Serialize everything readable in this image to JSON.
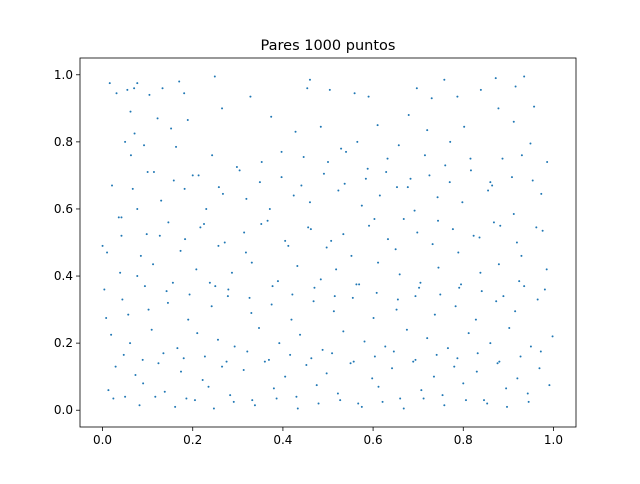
{
  "chart_data": {
    "type": "scatter",
    "title": "Pares 1000 puntos",
    "xlabel": "",
    "ylabel": "",
    "xlim": [
      -0.05,
      1.05
    ],
    "ylim": [
      -0.05,
      1.05
    ],
    "xticks": [
      0.0,
      0.2,
      0.4,
      0.6,
      0.8,
      1.0
    ],
    "yticks": [
      0.0,
      0.2,
      0.4,
      0.6,
      0.8,
      1.0
    ],
    "xtick_labels": [
      "0.0",
      "0.2",
      "0.4",
      "0.6",
      "0.8",
      "1.0"
    ],
    "ytick_labels": [
      "0.0",
      "0.2",
      "0.4",
      "0.6",
      "0.8",
      "1.0"
    ],
    "grid": false,
    "legend": "none",
    "point_color": "#1f77b4",
    "series": [
      {
        "x": [
          0.016,
          0.031,
          0.055,
          0.07,
          0.077,
          0.104,
          0.133,
          0.17,
          0.181,
          0.249,
          0.328,
          0.454,
          0.46,
          0.504,
          0.559,
          0.59,
          0.697,
          0.73,
          0.758,
          0.787,
          0.839,
          0.872,
          0.916,
          0.935,
          0.957,
          0.062,
          0.071,
          0.092,
          0.122,
          0.152,
          0.163,
          0.189,
          0.265,
          0.374,
          0.428,
          0.484,
          0.529,
          0.565,
          0.61,
          0.657,
          0.679,
          0.72,
          0.771,
          0.802,
          0.878,
          0.912,
          0.949,
          0.05,
          0.063,
          0.1,
          0.2,
          0.243,
          0.298,
          0.353,
          0.397,
          0.446,
          0.5,
          0.54,
          0.588,
          0.632,
          0.683,
          0.715,
          0.76,
          0.816,
          0.86,
          0.887,
          0.93,
          0.986,
          0.021,
          0.042,
          0.077,
          0.13,
          0.182,
          0.23,
          0.267,
          0.319,
          0.371,
          0.424,
          0.46,
          0.523,
          0.575,
          0.615,
          0.653,
          0.692,
          0.743,
          0.798,
          0.855,
          0.912,
          0.973,
          0.0,
          0.01,
          0.042,
          0.098,
          0.146,
          0.183,
          0.217,
          0.257,
          0.314,
          0.352,
          0.405,
          0.456,
          0.497,
          0.534,
          0.591,
          0.633,
          0.668,
          0.732,
          0.777,
          0.823,
          0.868,
          0.919,
          0.962,
          0.004,
          0.039,
          0.077,
          0.112,
          0.156,
          0.208,
          0.25,
          0.287,
          0.331,
          0.389,
          0.432,
          0.484,
          0.518,
          0.569,
          0.611,
          0.659,
          0.705,
          0.745,
          0.791,
          0.838,
          0.879,
          0.924,
          0.985,
          0.008,
          0.057,
          0.102,
          0.145,
          0.19,
          0.242,
          0.278,
          0.33,
          0.375,
          0.419,
          0.468,
          0.513,
          0.555,
          0.601,
          0.652,
          0.694,
          0.737,
          0.783,
          0.828,
          0.873,
          0.915,
          0.965,
          0.019,
          0.061,
          0.109,
          0.166,
          0.21,
          0.256,
          0.293,
          0.347,
          0.392,
          0.438,
          0.488,
          0.534,
          0.581,
          0.627,
          0.675,
          0.72,
          0.766,
          0.812,
          0.86,
          0.902,
          0.95,
          0.998,
          0.029,
          0.073,
          0.124,
          0.174,
          0.222,
          0.265,
          0.313,
          0.36,
          0.405,
          0.452,
          0.497,
          0.55,
          0.598,
          0.642,
          0.689,
          0.735,
          0.78,
          0.83,
          0.876,
          0.92,
          0.969,
          0.013,
          0.05,
          0.09,
          0.138,
          0.186,
          0.235,
          0.283,
          0.332,
          0.38,
          0.43,
          0.475,
          0.522,
          0.567,
          0.612,
          0.66,
          0.707,
          0.754,
          0.8,
          0.846,
          0.895,
          0.943,
          0.991,
          0.024,
          0.082,
          0.117,
          0.161,
          0.205,
          0.247,
          0.291,
          0.338,
          0.386,
          0.433,
          0.479,
          0.527,
          0.575,
          0.621,
          0.668,
          0.712,
          0.758,
          0.806,
          0.853,
          0.897,
          0.945,
          0.036,
          0.085,
          0.127,
          0.173,
          0.225,
          0.271,
          0.318,
          0.366,
          0.412,
          0.462,
          0.507,
          0.552,
          0.603,
          0.65,
          0.698,
          0.744,
          0.789,
          0.836,
          0.882,
          0.929,
          0.976,
          0.044,
          0.094,
          0.142,
          0.193,
          0.238,
          0.279,
          0.326,
          0.377,
          0.421,
          0.47,
          0.515,
          0.563,
          0.608,
          0.655,
          0.702,
          0.749,
          0.795,
          0.841,
          0.889,
          0.935,
          0.981,
          0.067,
          0.114,
          0.158,
          0.213,
          0.258,
          0.304,
          0.349,
          0.397,
          0.441,
          0.491,
          0.537,
          0.584,
          0.629,
          0.677,
          0.725,
          0.77,
          0.817,
          0.864,
          0.908,
          0.954,
          0.047,
          0.089,
          0.135,
          0.18,
          0.227,
          0.275,
          0.321,
          0.369,
          0.416,
          0.463,
          0.509,
          0.557,
          0.604,
          0.646,
          0.694,
          0.741,
          0.787,
          0.832,
          0.88,
          0.927,
          0.972
        ],
        "y": [
          0.975,
          0.945,
          0.955,
          0.96,
          0.975,
          0.94,
          0.96,
          0.98,
          0.945,
          0.995,
          0.935,
          0.96,
          0.985,
          0.955,
          0.945,
          0.935,
          0.96,
          0.93,
          0.985,
          0.935,
          0.955,
          0.99,
          0.965,
          0.995,
          0.905,
          0.89,
          0.825,
          0.79,
          0.87,
          0.84,
          0.785,
          0.865,
          0.9,
          0.875,
          0.83,
          0.845,
          0.78,
          0.8,
          0.85,
          0.79,
          0.88,
          0.835,
          0.8,
          0.845,
          0.9,
          0.86,
          0.795,
          0.8,
          0.76,
          0.71,
          0.7,
          0.76,
          0.725,
          0.74,
          0.77,
          0.755,
          0.74,
          0.77,
          0.72,
          0.75,
          0.69,
          0.76,
          0.73,
          0.75,
          0.68,
          0.75,
          0.76,
          0.74,
          0.67,
          0.575,
          0.6,
          0.625,
          0.66,
          0.6,
          0.645,
          0.63,
          0.6,
          0.64,
          0.62,
          0.655,
          0.61,
          0.64,
          0.665,
          0.595,
          0.635,
          0.62,
          0.655,
          0.585,
          0.645,
          0.49,
          0.47,
          0.52,
          0.525,
          0.56,
          0.51,
          0.545,
          0.49,
          0.53,
          0.555,
          0.505,
          0.545,
          0.485,
          0.525,
          0.55,
          0.51,
          0.57,
          0.495,
          0.54,
          0.52,
          0.56,
          0.5,
          0.545,
          0.36,
          0.41,
          0.4,
          0.435,
          0.38,
          0.42,
          0.37,
          0.41,
          0.44,
          0.385,
          0.43,
          0.39,
          0.42,
          0.375,
          0.44,
          0.405,
          0.38,
          0.425,
          0.365,
          0.41,
          0.435,
          0.385,
          0.42,
          0.275,
          0.285,
          0.3,
          0.32,
          0.27,
          0.31,
          0.34,
          0.29,
          0.315,
          0.27,
          0.325,
          0.295,
          0.335,
          0.275,
          0.3,
          0.34,
          0.285,
          0.31,
          0.27,
          0.325,
          0.295,
          0.33,
          0.225,
          0.2,
          0.24,
          0.185,
          0.23,
          0.21,
          0.19,
          0.245,
          0.2,
          0.225,
          0.18,
          0.235,
          0.205,
          0.19,
          0.24,
          0.215,
          0.185,
          0.23,
          0.2,
          0.245,
          0.19,
          0.22,
          0.13,
          0.105,
          0.14,
          0.115,
          0.09,
          0.13,
          0.12,
          0.145,
          0.1,
          0.135,
          0.11,
          0.14,
          0.095,
          0.125,
          0.145,
          0.1,
          0.13,
          0.115,
          0.14,
          0.095,
          0.125,
          0.06,
          0.04,
          0.08,
          0.055,
          0.035,
          0.07,
          0.045,
          0.03,
          0.065,
          0.04,
          0.075,
          0.05,
          0.02,
          0.07,
          0.035,
          0.06,
          0.045,
          0.08,
          0.03,
          0.065,
          0.05,
          0.075,
          0.035,
          0.015,
          0.04,
          0.01,
          0.03,
          0.005,
          0.025,
          0.015,
          0.035,
          0.005,
          0.02,
          0.03,
          0.01,
          0.025,
          0.005,
          0.035,
          0.015,
          0.03,
          0.02,
          0.01,
          0.025,
          0.575,
          0.46,
          0.52,
          0.475,
          0.555,
          0.5,
          0.47,
          0.565,
          0.49,
          0.54,
          0.505,
          0.46,
          0.57,
          0.48,
          0.53,
          0.565,
          0.47,
          0.515,
          0.55,
          0.46,
          0.535,
          0.33,
          0.37,
          0.355,
          0.345,
          0.38,
          0.36,
          0.335,
          0.37,
          0.345,
          0.365,
          0.34,
          0.375,
          0.35,
          0.33,
          0.365,
          0.345,
          0.375,
          0.355,
          0.34,
          0.37,
          0.36,
          0.66,
          0.71,
          0.685,
          0.7,
          0.665,
          0.715,
          0.68,
          0.695,
          0.67,
          0.705,
          0.675,
          0.69,
          0.71,
          0.665,
          0.7,
          0.68,
          0.715,
          0.67,
          0.695,
          0.685,
          0.165,
          0.15,
          0.17,
          0.155,
          0.16,
          0.145,
          0.175,
          0.15,
          0.165,
          0.155,
          0.17,
          0.145,
          0.16,
          0.175,
          0.15,
          0.165,
          0.155,
          0.17,
          0.145,
          0.16,
          0.175
        ]
      }
    ]
  }
}
